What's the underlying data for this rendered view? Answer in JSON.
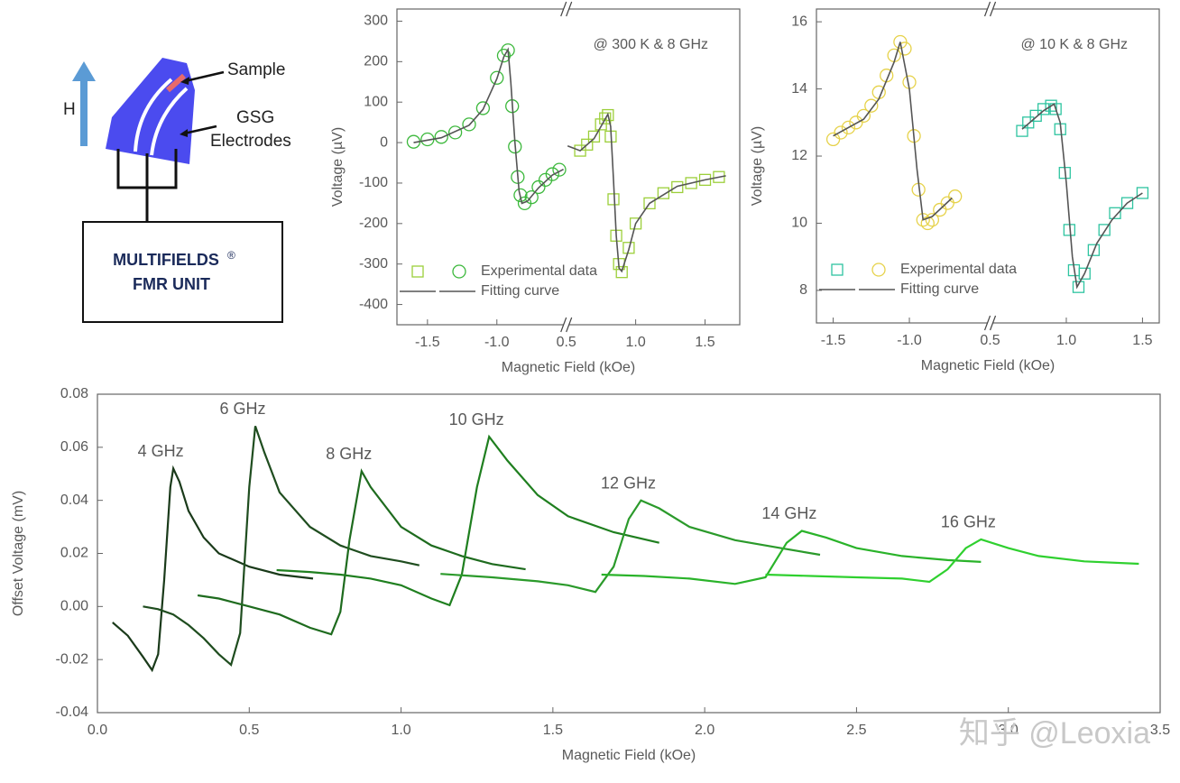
{
  "diagram": {
    "h_label": "H",
    "sample_label": "Sample",
    "electrode_label": [
      "GSG",
      "Electrodes"
    ],
    "unit_label": [
      "MULTIFIELDS",
      "®",
      "FMR UNIT"
    ]
  },
  "watermark": "知乎 @Leoxia",
  "chart_data": [
    {
      "type": "scatter",
      "annotation": "@ 300 K & 8 GHz",
      "xlabel": "Magnetic Field (kOe)",
      "ylabel": "Voltage (µV)",
      "ylim": [
        -450,
        330
      ],
      "yticks": [
        300,
        200,
        100,
        0,
        -100,
        -200,
        -300,
        -400
      ],
      "x_segments": [
        {
          "xlim": [
            -1.72,
            -0.5
          ],
          "xticks": [
            -1.5,
            {
              "value": -1,
              "label": "-1.0"
            }
          ]
        },
        {
          "xlim": [
            0.5,
            1.75
          ],
          "xticks": [
            0.5,
            {
              "value": 1,
              "label": "1.0"
            },
            1.5
          ]
        }
      ],
      "series": [
        {
          "name": "Experimental data",
          "parts": [
            {
              "segment": 1,
              "marker": "square",
              "color": "#9ccf3a",
              "x": [
                0.6,
                0.65,
                0.7,
                0.75,
                0.78,
                0.8,
                0.82,
                0.84,
                0.86,
                0.88,
                0.9,
                0.95,
                1.0,
                1.1,
                1.2,
                1.3,
                1.4,
                1.5,
                1.6
              ],
              "values": [
                -20,
                -5,
                15,
                45,
                60,
                68,
                15,
                -140,
                -230,
                -300,
                -320,
                -260,
                -200,
                -150,
                -125,
                -110,
                -100,
                -92,
                -85
              ]
            },
            {
              "segment": 0,
              "marker": "circle",
              "color": "#3cb83c",
              "x": [
                -1.6,
                -1.5,
                -1.4,
                -1.3,
                -1.2,
                -1.1,
                -1.0,
                -0.95,
                -0.92,
                -0.89,
                -0.87,
                -0.85,
                -0.83,
                -0.8,
                -0.75,
                -0.7,
                -0.65,
                -0.6,
                -0.55
              ],
              "values": [
                2,
                8,
                14,
                25,
                45,
                85,
                160,
                215,
                228,
                90,
                -10,
                -85,
                -130,
                -150,
                -135,
                -110,
                -92,
                -78,
                -67
              ]
            }
          ]
        },
        {
          "name": "Fitting curve",
          "color": "#555555",
          "parts": [
            {
              "segment": 0,
              "x": [
                -1.6,
                -1.4,
                -1.2,
                -1.1,
                -1.0,
                -0.95,
                -0.92,
                -0.9,
                -0.87,
                -0.84,
                -0.82,
                -0.78,
                -0.7,
                -0.6,
                -0.52
              ],
              "values": [
                0,
                12,
                43,
                82,
                158,
                212,
                230,
                150,
                0,
                -120,
                -150,
                -145,
                -112,
                -80,
                -66
              ]
            },
            {
              "segment": 1,
              "x": [
                0.51,
                0.6,
                0.7,
                0.75,
                0.8,
                0.82,
                0.84,
                0.86,
                0.88,
                0.9,
                0.95,
                1.0,
                1.1,
                1.3,
                1.5,
                1.65
              ],
              "values": [
                -8,
                -20,
                10,
                40,
                70,
                40,
                -90,
                -230,
                -310,
                -318,
                -265,
                -200,
                -150,
                -108,
                -92,
                -82
              ]
            }
          ]
        }
      ]
    },
    {
      "type": "scatter",
      "annotation": "@ 10 K & 8 GHz",
      "xlabel": "Magnetic Field (kOe)",
      "ylabel": "Voltage (µV)",
      "ylim": [
        7.03,
        16.38
      ],
      "yticks": [
        16,
        14,
        12,
        10,
        8
      ],
      "x_segments": [
        {
          "xlim": [
            -1.61,
            -0.47
          ],
          "xticks": [
            -1.5,
            {
              "value": -1,
              "label": "-1.0"
            }
          ]
        },
        {
          "xlim": [
            0.5,
            1.61
          ],
          "xticks": [
            0.5,
            {
              "value": 1,
              "label": "1.0"
            },
            1.5
          ]
        }
      ],
      "series": [
        {
          "name": "Experimental data",
          "parts": [
            {
              "segment": 1,
              "marker": "square",
              "color": "#2ec4a0",
              "x": [
                0.71,
                0.75,
                0.8,
                0.85,
                0.9,
                0.93,
                0.96,
                0.99,
                1.02,
                1.05,
                1.08,
                1.12,
                1.18,
                1.25,
                1.32,
                1.4,
                1.5
              ],
              "values": [
                12.75,
                13.0,
                13.2,
                13.4,
                13.5,
                13.4,
                12.8,
                11.5,
                9.8,
                8.6,
                8.1,
                8.5,
                9.2,
                9.8,
                10.3,
                10.6,
                10.9
              ]
            },
            {
              "segment": 0,
              "marker": "circle",
              "color": "#e6d24a",
              "x": [
                -1.5,
                -1.45,
                -1.4,
                -1.35,
                -1.3,
                -1.25,
                -1.2,
                -1.15,
                -1.1,
                -1.06,
                -1.03,
                -1.0,
                -0.97,
                -0.94,
                -0.91,
                -0.88,
                -0.85,
                -0.8,
                -0.75,
                -0.7
              ],
              "values": [
                12.5,
                12.7,
                12.85,
                13.0,
                13.2,
                13.5,
                13.9,
                14.4,
                15.0,
                15.4,
                15.2,
                14.2,
                12.6,
                11.0,
                10.1,
                10.0,
                10.1,
                10.4,
                10.6,
                10.8
              ]
            }
          ]
        },
        {
          "name": "Fitting curve",
          "color": "#555555",
          "parts": [
            {
              "segment": 0,
              "x": [
                -1.5,
                -1.3,
                -1.2,
                -1.1,
                -1.06,
                -1.0,
                -0.95,
                -0.91,
                -0.85,
                -0.72
              ],
              "values": [
                12.6,
                13.1,
                13.7,
                14.8,
                15.4,
                14.0,
                11.6,
                10.1,
                10.2,
                10.75
              ]
            },
            {
              "segment": 1,
              "x": [
                0.71,
                0.85,
                0.92,
                0.96,
                1.0,
                1.04,
                1.07,
                1.12,
                1.2,
                1.3,
                1.4,
                1.5
              ],
              "values": [
                12.8,
                13.35,
                13.55,
                13.0,
                11.2,
                9.0,
                8.1,
                8.5,
                9.4,
                10.1,
                10.6,
                10.9
              ]
            }
          ]
        }
      ]
    },
    {
      "type": "line",
      "xlabel": "Magnetic Field (kOe)",
      "ylabel": "Offset Voltage (mV)",
      "xlim": [
        0,
        3.5
      ],
      "xticks": [
        {
          "value": 0,
          "label": "0.0"
        },
        0.5,
        {
          "value": 1,
          "label": "1.0"
        },
        1.5,
        {
          "value": 2,
          "label": "2.0"
        },
        2.5,
        {
          "value": 3,
          "label": "3.0"
        },
        3.5
      ],
      "ylim": [
        -0.04,
        0.08
      ],
      "yticks": [
        0.08,
        0.06,
        0.04,
        0.02,
        {
          "value": 0,
          "label": "0.00"
        },
        -0.02,
        -0.04
      ],
      "series": [
        {
          "name": "4 GHz",
          "color": "#1a3a1a",
          "x": [
            0.05,
            0.1,
            0.15,
            0.18,
            0.2,
            0.22,
            0.24,
            0.25,
            0.27,
            0.3,
            0.35,
            0.4,
            0.5,
            0.6,
            0.71
          ],
          "values": [
            -0.006,
            -0.011,
            -0.019,
            -0.024,
            -0.018,
            0.01,
            0.045,
            0.052,
            0.047,
            0.036,
            0.026,
            0.02,
            0.015,
            0.012,
            0.0105
          ]
        },
        {
          "name": "6 GHz",
          "color": "#1f4d1f",
          "x": [
            0.15,
            0.2,
            0.25,
            0.3,
            0.35,
            0.4,
            0.44,
            0.47,
            0.5,
            0.52,
            0.55,
            0.6,
            0.7,
            0.8,
            0.9,
            1.0,
            1.06
          ],
          "values": [
            0.0,
            -0.001,
            -0.003,
            -0.007,
            -0.012,
            -0.018,
            -0.022,
            -0.01,
            0.045,
            0.068,
            0.058,
            0.043,
            0.03,
            0.023,
            0.019,
            0.017,
            0.0155
          ]
        },
        {
          "name": "8 GHz",
          "color": "#1e6b1e",
          "x": [
            0.33,
            0.4,
            0.5,
            0.6,
            0.7,
            0.77,
            0.8,
            0.83,
            0.87,
            0.9,
            1.0,
            1.1,
            1.2,
            1.3,
            1.41
          ],
          "values": [
            0.0042,
            0.003,
            0.0,
            -0.003,
            -0.008,
            -0.0105,
            -0.002,
            0.025,
            0.051,
            0.045,
            0.03,
            0.023,
            0.019,
            0.016,
            0.014
          ]
        },
        {
          "name": "10 GHz",
          "color": "#1f7f1f",
          "x": [
            0.59,
            0.7,
            0.8,
            0.9,
            1.0,
            1.1,
            1.16,
            1.2,
            1.25,
            1.29,
            1.35,
            1.45,
            1.55,
            1.7,
            1.85
          ],
          "values": [
            0.0137,
            0.013,
            0.012,
            0.0105,
            0.008,
            0.003,
            0.0005,
            0.012,
            0.045,
            0.064,
            0.055,
            0.042,
            0.034,
            0.028,
            0.024
          ]
        },
        {
          "name": "12 GHz",
          "color": "#2b9a2b",
          "x": [
            1.13,
            1.3,
            1.45,
            1.55,
            1.64,
            1.7,
            1.75,
            1.79,
            1.85,
            1.95,
            2.1,
            2.25,
            2.38
          ],
          "values": [
            0.0123,
            0.011,
            0.0095,
            0.008,
            0.0055,
            0.015,
            0.033,
            0.04,
            0.037,
            0.03,
            0.025,
            0.022,
            0.0195
          ]
        },
        {
          "name": "14 GHz",
          "color": "#2ab32a",
          "x": [
            1.66,
            1.8,
            1.95,
            2.1,
            2.2,
            2.27,
            2.32,
            2.4,
            2.5,
            2.65,
            2.8,
            2.91
          ],
          "values": [
            0.012,
            0.0115,
            0.0105,
            0.0085,
            0.011,
            0.024,
            0.0285,
            0.026,
            0.022,
            0.019,
            0.0175,
            0.0168
          ]
        },
        {
          "name": "16 GHz",
          "color": "#2fd02f",
          "x": [
            2.2,
            2.35,
            2.5,
            2.65,
            2.74,
            2.8,
            2.86,
            2.91,
            3.0,
            3.1,
            3.25,
            3.43
          ],
          "values": [
            0.012,
            0.0115,
            0.011,
            0.0105,
            0.0093,
            0.014,
            0.022,
            0.0253,
            0.022,
            0.019,
            0.017,
            0.0161
          ]
        }
      ]
    }
  ]
}
